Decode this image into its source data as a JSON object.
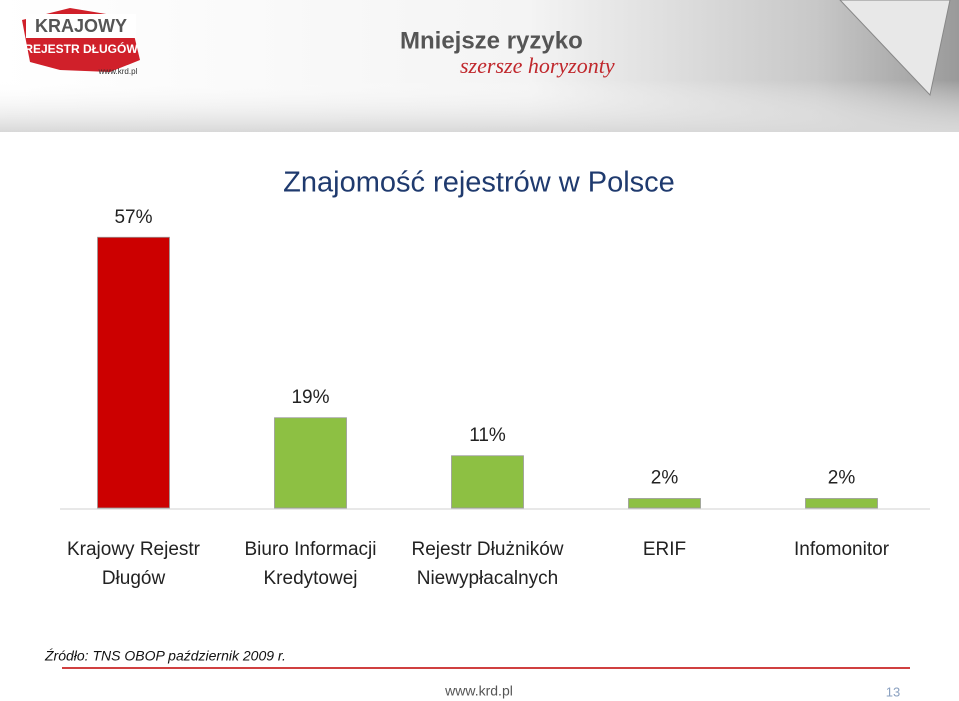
{
  "header": {
    "logo_line1": "KRAJOWY",
    "logo_line2": "REJESTR DŁUGÓW",
    "logo_url": "www.krd.pl",
    "slogan1": "Mniejsze ryzyko",
    "slogan2": "szersze horyzonty"
  },
  "chart_data": {
    "type": "bar",
    "title": "Znajomość rejestrów w Polsce",
    "categories": [
      "Krajowy Rejestr Długów",
      "Biuro Informacji Kredytowej",
      "Rejestr Dłużników Niewypłacalnych",
      "ERIF",
      "Infomonitor"
    ],
    "values": [
      57,
      19,
      11,
      2,
      2
    ],
    "value_labels": [
      "57%",
      "19%",
      "11%",
      "2%",
      "2%"
    ],
    "colors": [
      "#cc0000",
      "#8dc043",
      "#8dc043",
      "#8dc043",
      "#8dc043"
    ]
  },
  "footer": {
    "source": "Źródło: TNS OBOP październik 2009 r.",
    "url": "www.krd.pl",
    "page": 13
  }
}
